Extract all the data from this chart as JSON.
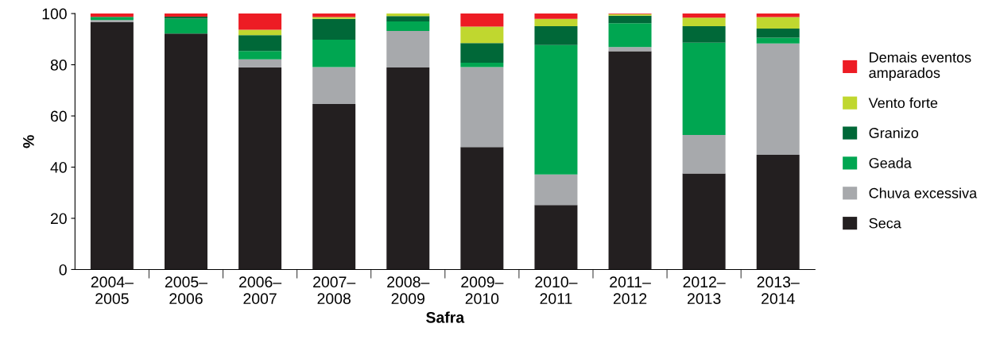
{
  "chart_data": {
    "type": "bar",
    "stacked": true,
    "xlabel": "Safra",
    "ylabel": "%",
    "categories": [
      "2004–\n2005",
      "2005–\n2006",
      "2006–\n2007",
      "2007–\n2008",
      "2008–\n2009",
      "2009–\n2010",
      "2010–\n2011",
      "2011–\n2012",
      "2012–\n2013",
      "2013–\n2014"
    ],
    "series": [
      {
        "name": "Seca",
        "color": "#231f20",
        "values": [
          96.6,
          92.2,
          79.0,
          64.7,
          78.9,
          47.8,
          25.2,
          85.3,
          37.5,
          44.8
        ]
      },
      {
        "name": "Chuva excessiva",
        "color": "#a7a9ac",
        "values": [
          0.9,
          0,
          3.1,
          14.4,
          14.3,
          31.3,
          11.9,
          1.6,
          15.1,
          43.5
        ]
      },
      {
        "name": "Geada",
        "color": "#00a651",
        "values": [
          1.2,
          5.8,
          3.3,
          10.7,
          3.7,
          1.7,
          50.6,
          9.3,
          36.0,
          2.3
        ]
      },
      {
        "name": "Granizo",
        "color": "#006838",
        "values": [
          0,
          0.8,
          6.2,
          8.1,
          2.1,
          7.7,
          7.4,
          3.0,
          6.5,
          3.5
        ]
      },
      {
        "name": "Vento forte",
        "color": "#c0d72f",
        "values": [
          0,
          0,
          2.1,
          0.7,
          1.0,
          6.4,
          2.8,
          0.6,
          3.3,
          4.5
        ]
      },
      {
        "name": "Demais eventos\namparados",
        "color": "#ed1c24",
        "values": [
          1.3,
          1.2,
          6.3,
          1.4,
          0,
          5.1,
          2.1,
          0.2,
          1.6,
          1.4
        ]
      }
    ],
    "ylim": [
      0,
      100
    ],
    "yticks": [
      0,
      20,
      40,
      60,
      80,
      100
    ],
    "grid": false,
    "legend": "right"
  }
}
